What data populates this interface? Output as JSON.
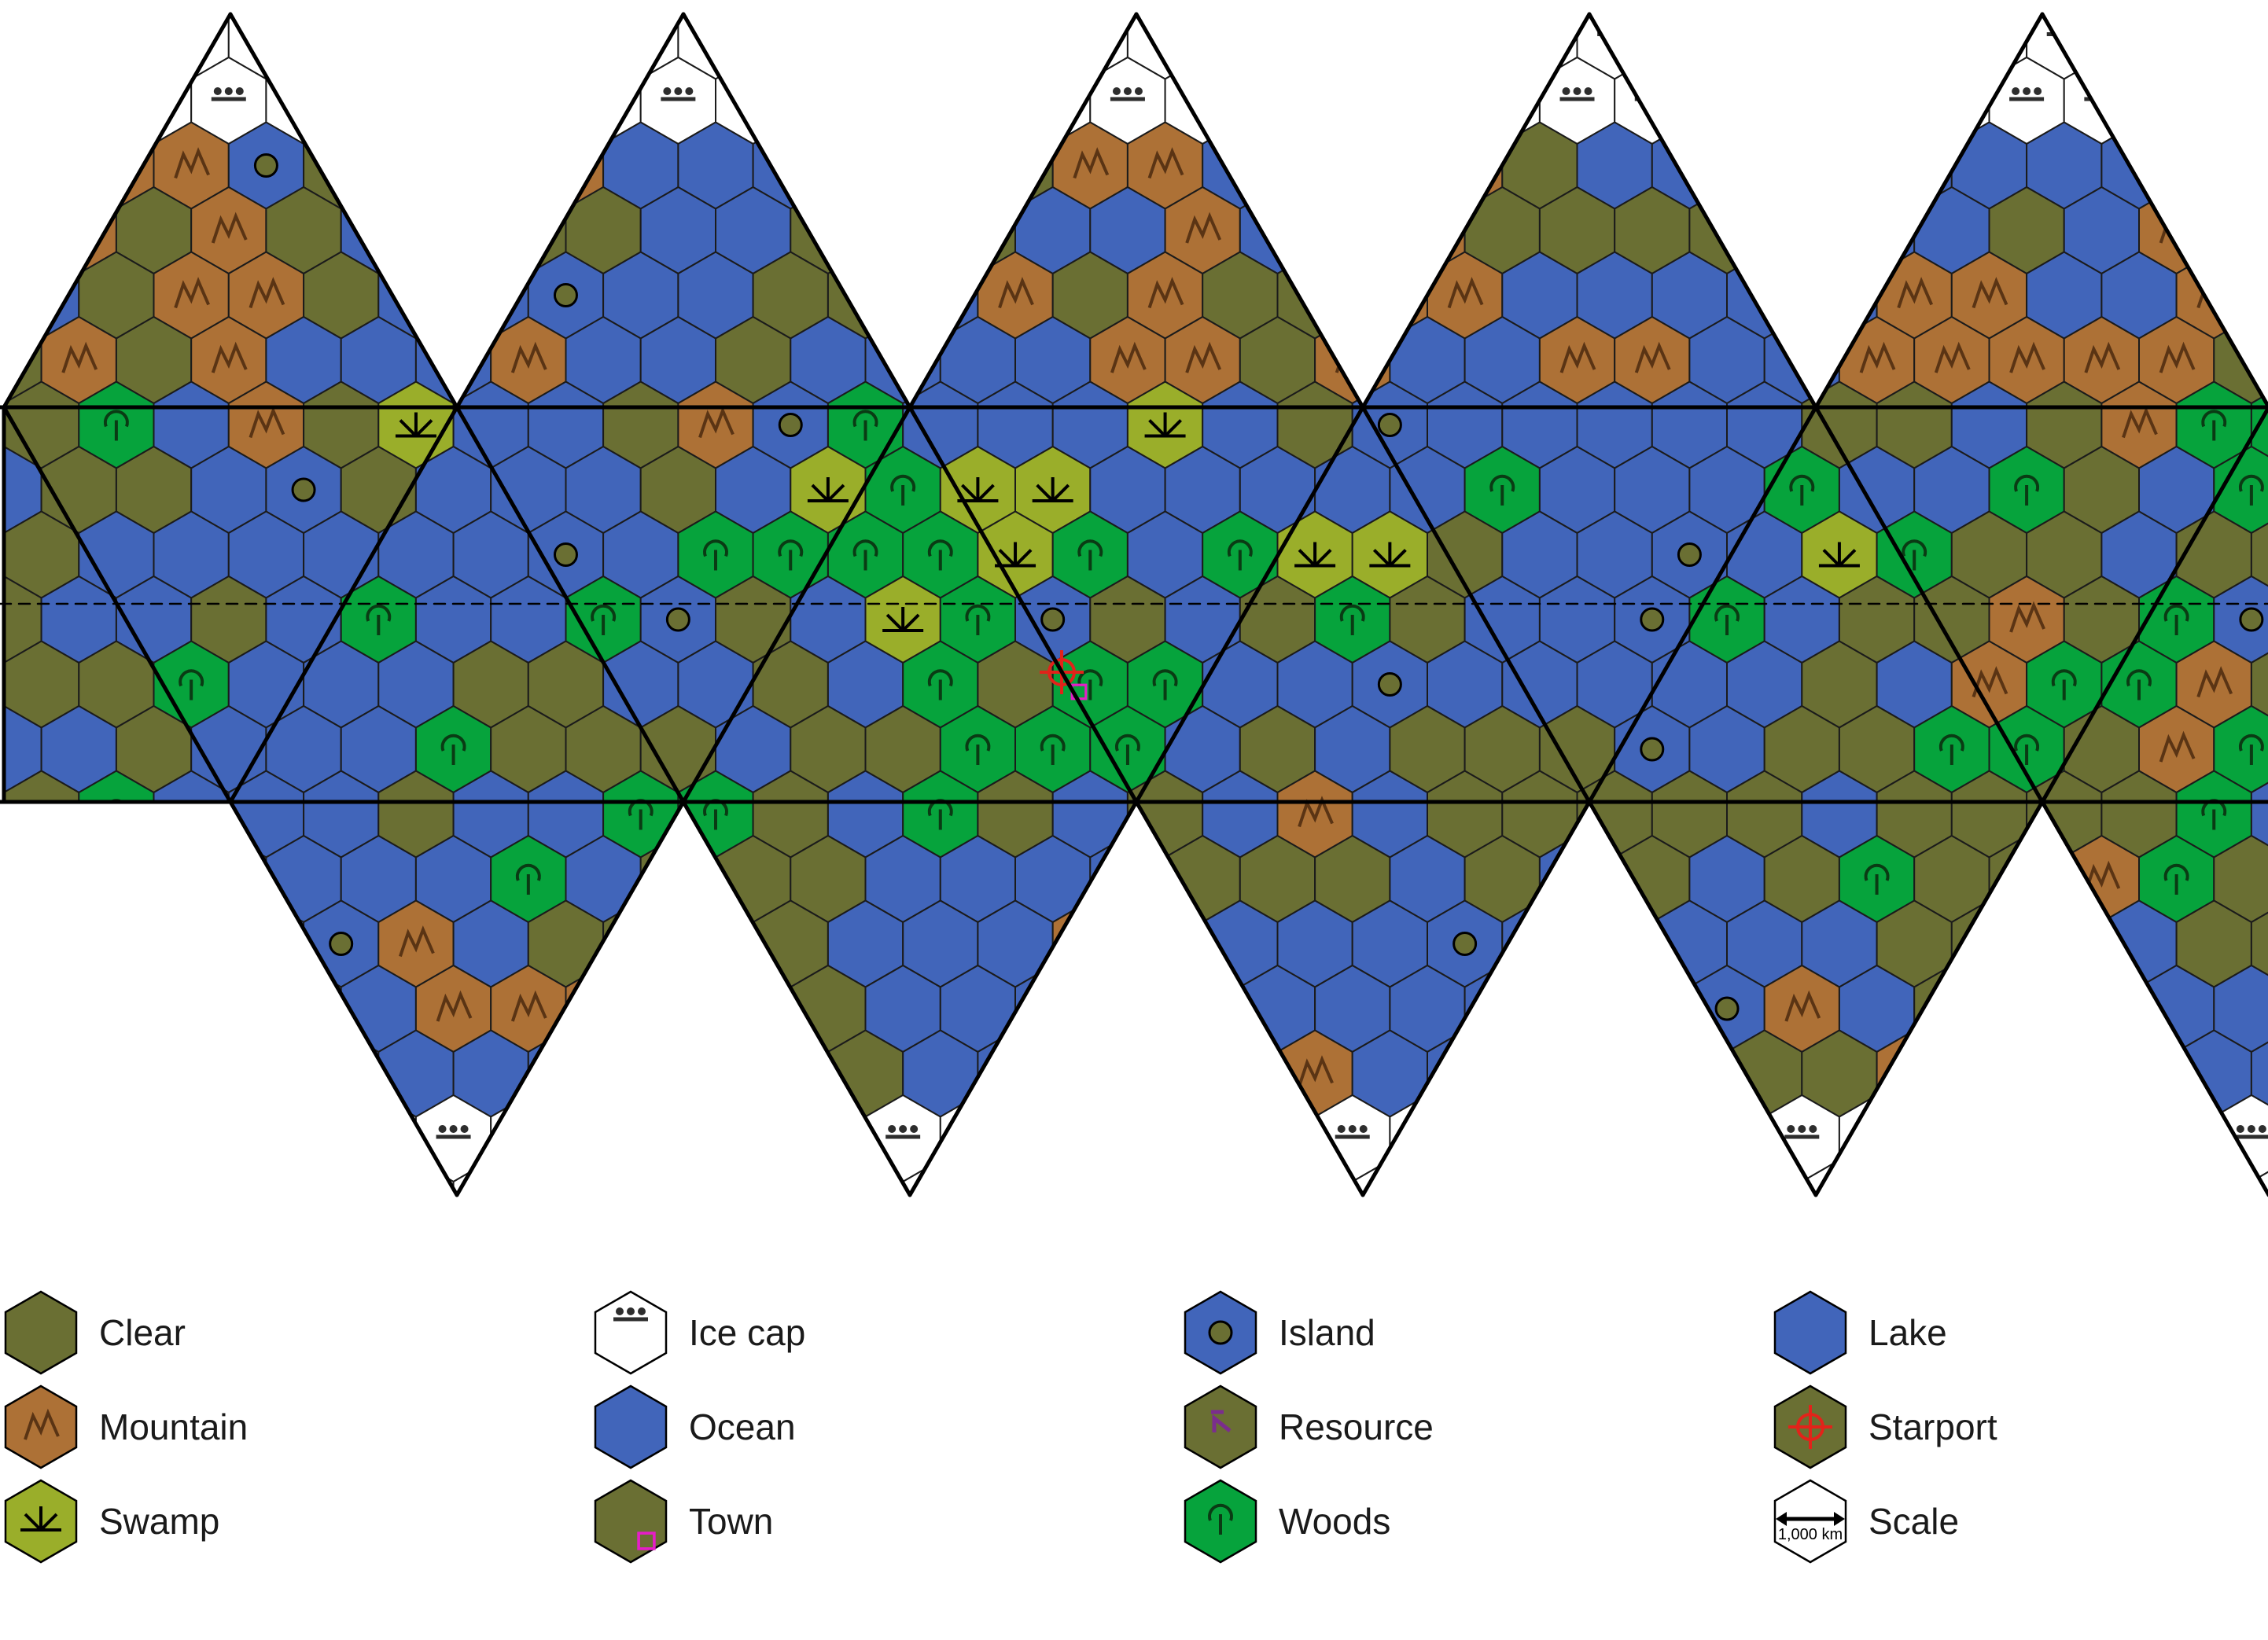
{
  "colors": {
    "clear": "#6a6f33",
    "mountain": "#ad7136",
    "swamp": "#9aae2a",
    "woods": "#06a33c",
    "ocean": "#4165ba",
    "ice": "#ffffff",
    "outline": "#000000",
    "icon_dark": "#2d2d2d",
    "starport": "#e2231a",
    "town": "#e61dc8",
    "resource": "#7b2d8e"
  },
  "map": {
    "layout": "icosahedral-net",
    "upper_triangles": 5,
    "lower_triangles": 5,
    "equator_line": "dashed",
    "starport_present": true,
    "town_present": true
  },
  "legend": [
    {
      "key": "clear",
      "label": "Clear",
      "icon": "clear-hex-icon"
    },
    {
      "key": "ice",
      "label": "Ice cap",
      "icon": "ice-cap-hex-icon"
    },
    {
      "key": "island",
      "label": "Island",
      "icon": "island-hex-icon"
    },
    {
      "key": "lake",
      "label": "Lake",
      "icon": "lake-hex-icon"
    },
    {
      "key": "mountain",
      "label": "Mountain",
      "icon": "mountain-hex-icon"
    },
    {
      "key": "ocean",
      "label": "Ocean",
      "icon": "ocean-hex-icon"
    },
    {
      "key": "resource",
      "label": "Resource",
      "icon": "resource-hex-icon"
    },
    {
      "key": "starport",
      "label": "Starport",
      "icon": "starport-hex-icon"
    },
    {
      "key": "swamp",
      "label": "Swamp",
      "icon": "swamp-hex-icon"
    },
    {
      "key": "town",
      "label": "Town",
      "icon": "town-hex-icon"
    },
    {
      "key": "woods",
      "label": "Woods",
      "icon": "woods-hex-icon"
    },
    {
      "key": "scale",
      "label": "Scale",
      "icon": "scale-hex-icon",
      "scale_text": "1,000 km"
    }
  ]
}
